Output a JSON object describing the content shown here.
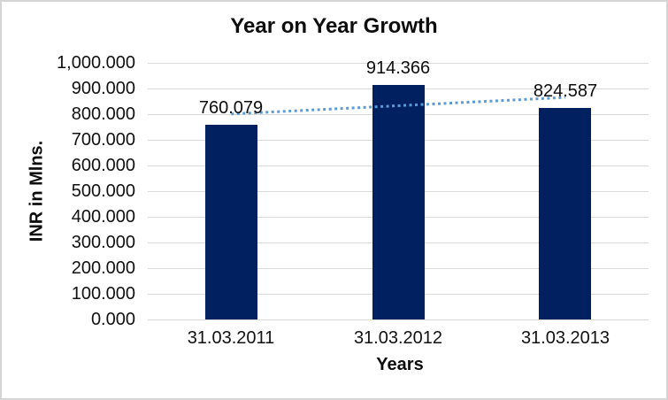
{
  "chart_data": {
    "type": "bar",
    "title": "Year on Year Growth",
    "xlabel": "Years",
    "ylabel": "INR in Mlns.",
    "categories": [
      "31.03.2011",
      "31.03.2012",
      "31.03.2013"
    ],
    "values": [
      760.079,
      914.366,
      824.587
    ],
    "data_labels": [
      "760.079",
      "914.366",
      "824.587"
    ],
    "ylim": [
      0,
      1000
    ],
    "ytick_step": 100,
    "ytick_labels": [
      "0.000",
      "100.000",
      "200.000",
      "300.000",
      "400.000",
      "500.000",
      "600.000",
      "700.000",
      "800.000",
      "900.000",
      "1,000.000"
    ],
    "grid": true,
    "legend": "none",
    "trendline": {
      "type": "linear",
      "line_style": "dotted",
      "color": "#5B9BD5",
      "start_value": 800.8,
      "end_value": 865.3
    },
    "colors": {
      "bar": "#002060",
      "gridline": "#d9d9d9",
      "trendline": "#5B9BD5",
      "text": "#0d0d0d",
      "border": "#d5d5d5",
      "background": "#ffffff"
    }
  }
}
